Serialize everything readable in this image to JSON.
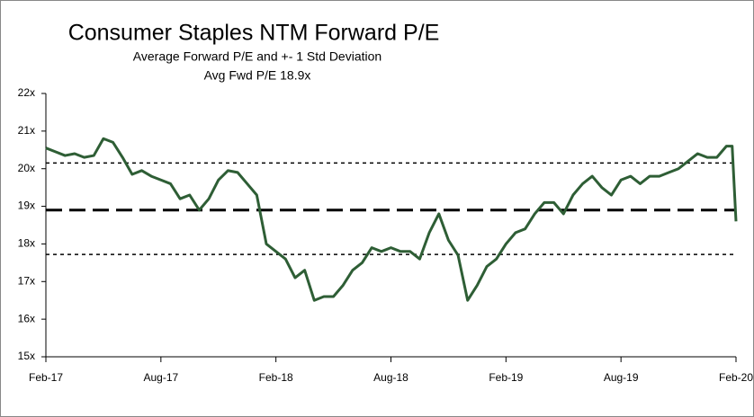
{
  "chart_data": {
    "type": "line",
    "title": "Consumer Staples NTM Forward P/E",
    "subtitle": "Average Forward P/E and +- 1 Std Deviation",
    "annotation": "Avg Fwd P/E 18.9x",
    "x": [
      0,
      0.5,
      1,
      1.5,
      2,
      2.5,
      3,
      3.5,
      4,
      4.5,
      5,
      5.5,
      6,
      6.5,
      7,
      7.5,
      8,
      8.5,
      9,
      9.5,
      10,
      10.5,
      11,
      11.5,
      12,
      12.5,
      13,
      13.5,
      14,
      14.5,
      15,
      15.5,
      16,
      16.5,
      17,
      17.5,
      18,
      18.5,
      19,
      19.5,
      20,
      20.5,
      21,
      21.5,
      22,
      22.5,
      23,
      23.5,
      24,
      24.5,
      25,
      25.5,
      26,
      26.5,
      27,
      27.5,
      28,
      28.5,
      29,
      29.5,
      30,
      30.5,
      31,
      31.5,
      32,
      32.5,
      33,
      33.5,
      34,
      34.5,
      35,
      35.5,
      35.8,
      36
    ],
    "series": [
      {
        "color": "#2e5e35",
        "values": [
          20.55,
          20.45,
          20.35,
          20.4,
          20.3,
          20.35,
          20.8,
          20.7,
          20.3,
          19.85,
          19.95,
          19.8,
          19.7,
          19.6,
          19.2,
          19.3,
          18.9,
          19.2,
          19.7,
          19.95,
          19.9,
          19.6,
          19.3,
          18.0,
          17.8,
          17.6,
          17.1,
          17.3,
          16.5,
          16.6,
          16.6,
          16.9,
          17.3,
          17.5,
          17.9,
          17.8,
          17.9,
          17.8,
          17.8,
          17.6,
          18.3,
          18.8,
          18.1,
          17.7,
          16.5,
          16.9,
          17.4,
          17.6,
          18.0,
          18.3,
          18.4,
          18.8,
          19.1,
          19.1,
          18.8,
          19.3,
          19.6,
          19.8,
          19.5,
          19.3,
          19.7,
          19.8,
          19.6,
          19.8,
          19.8,
          19.9,
          20.0,
          20.2,
          20.4,
          20.3,
          20.3,
          20.6,
          20.6,
          18.6
        ]
      }
    ],
    "reference_lines": [
      {
        "value": 20.15,
        "style": "dotted"
      },
      {
        "value": 18.9,
        "style": "dashed"
      },
      {
        "value": 17.72,
        "style": "dotted"
      }
    ],
    "xlim": [
      0,
      36
    ],
    "xticks": [
      {
        "value": 0,
        "label": "Feb-17"
      },
      {
        "value": 6,
        "label": "Aug-17"
      },
      {
        "value": 12,
        "label": "Feb-18"
      },
      {
        "value": 18,
        "label": "Aug-18"
      },
      {
        "value": 24,
        "label": "Feb-19"
      },
      {
        "value": 30,
        "label": "Aug-19"
      },
      {
        "value": 36,
        "label": "Feb-20"
      }
    ],
    "ylim": [
      15,
      22
    ],
    "yticks": [
      {
        "value": 15,
        "label": "15x"
      },
      {
        "value": 16,
        "label": "16x"
      },
      {
        "value": 17,
        "label": "17x"
      },
      {
        "value": 18,
        "label": "18x"
      },
      {
        "value": 19,
        "label": "19x"
      },
      {
        "value": 20,
        "label": "20x"
      },
      {
        "value": 21,
        "label": "21x"
      },
      {
        "value": 22,
        "label": "22x"
      }
    ]
  }
}
